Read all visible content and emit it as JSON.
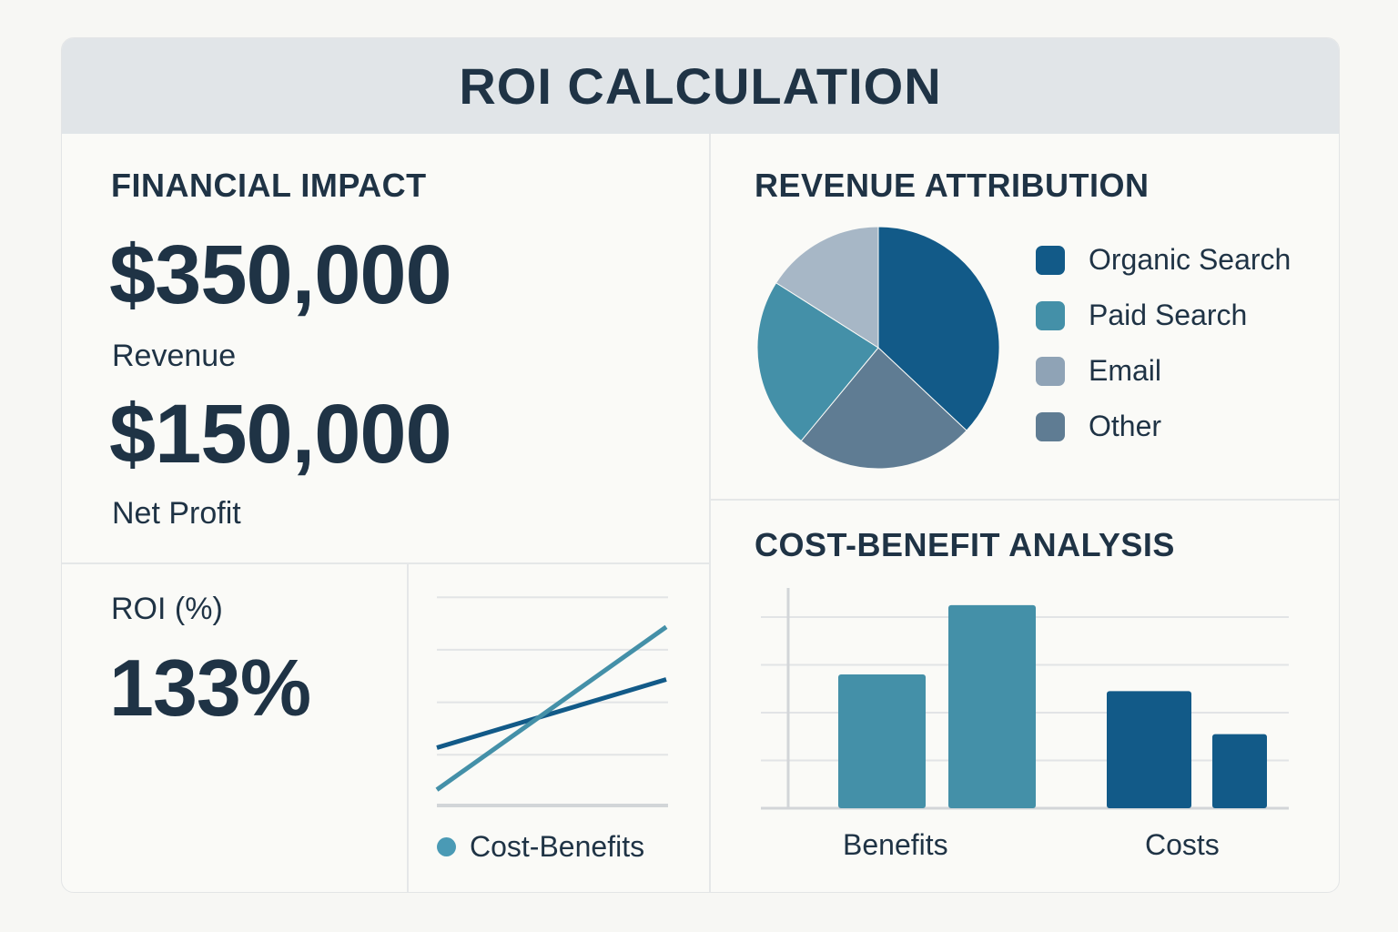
{
  "title": "ROI CALCULATION",
  "financial_impact": {
    "heading": "FINANCIAL IMPACT",
    "revenue_value": "$350,000",
    "revenue_label": "Revenue",
    "profit_value": "$150,000",
    "profit_label": "Net Profit"
  },
  "roi": {
    "heading": "ROI (%)",
    "value": "133%"
  },
  "colors": {
    "dark_blue": "#125a88",
    "teal": "#4490a8",
    "light": "#a7b7c6",
    "slate": "#5f7c93",
    "email_legend": "#8fa3b6"
  },
  "chart_data": [
    {
      "type": "pie",
      "title": "REVENUE ATTRIBUTION",
      "categories": [
        "Organic Search",
        "Other",
        "Paid Search",
        "Email"
      ],
      "values": [
        37,
        24,
        23,
        16
      ],
      "legend": [
        "Organic Search",
        "Paid Search",
        "Email",
        "Other"
      ],
      "legend_placement": "right"
    },
    {
      "type": "line",
      "title": "",
      "legend": [
        "Cost-Benefits"
      ],
      "grid": true,
      "ylim": [
        0,
        4.2
      ],
      "x": [
        0,
        1
      ],
      "series": [
        {
          "values": [
            1.1,
            2.4
          ],
          "color": "#125a88"
        },
        {
          "values": [
            0.3,
            3.4
          ],
          "color": "#4490a8"
        }
      ]
    },
    {
      "type": "bar",
      "title": "COST-BENEFIT ANALYSIS",
      "categories": [
        "Benefits",
        "Costs"
      ],
      "grid": true,
      "ylim": [
        0,
        4.6
      ],
      "series": [
        {
          "values": [
            2.8,
            4.25
          ],
          "color": "#4490a8",
          "group": "Benefits"
        },
        {
          "values": [
            2.45,
            1.55
          ],
          "color": "#125a88",
          "group": "Costs"
        }
      ]
    }
  ]
}
